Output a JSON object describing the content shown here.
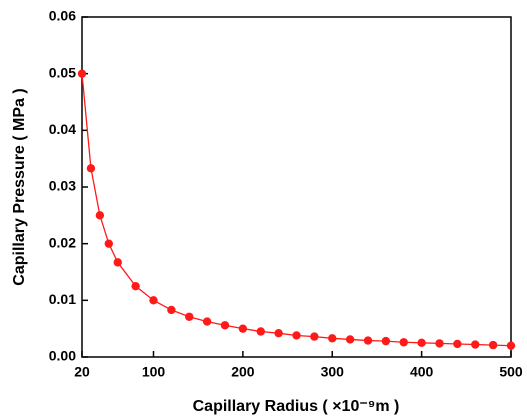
{
  "chart_data": {
    "type": "line",
    "xlabel": "Capillary Radius ( ×10⁻⁹m )",
    "ylabel": "Capillary Pressure ( MPa )",
    "x": [
      20,
      30,
      40,
      50,
      60,
      80,
      100,
      120,
      140,
      160,
      180,
      200,
      220,
      240,
      260,
      280,
      300,
      320,
      340,
      360,
      380,
      400,
      420,
      440,
      460,
      480,
      500
    ],
    "series": [
      {
        "color": "#ff1a1a",
        "values": [
          0.05,
          0.0333,
          0.025,
          0.02,
          0.0167,
          0.0125,
          0.01,
          0.0083,
          0.0071,
          0.00625,
          0.0056,
          0.005,
          0.0045,
          0.0042,
          0.0038,
          0.0036,
          0.0033,
          0.0031,
          0.0029,
          0.0028,
          0.0026,
          0.0025,
          0.0024,
          0.0023,
          0.0022,
          0.0021,
          0.002
        ]
      }
    ],
    "xlim": [
      20,
      500
    ],
    "xticks": [
      20,
      100,
      200,
      300,
      400,
      500
    ],
    "ylim": [
      0,
      0.06
    ],
    "yticks": [
      {
        "value": 0,
        "label": "0.00"
      },
      0.01,
      0.02,
      0.03,
      0.04,
      0.05,
      0.06
    ],
    "grid": false
  }
}
